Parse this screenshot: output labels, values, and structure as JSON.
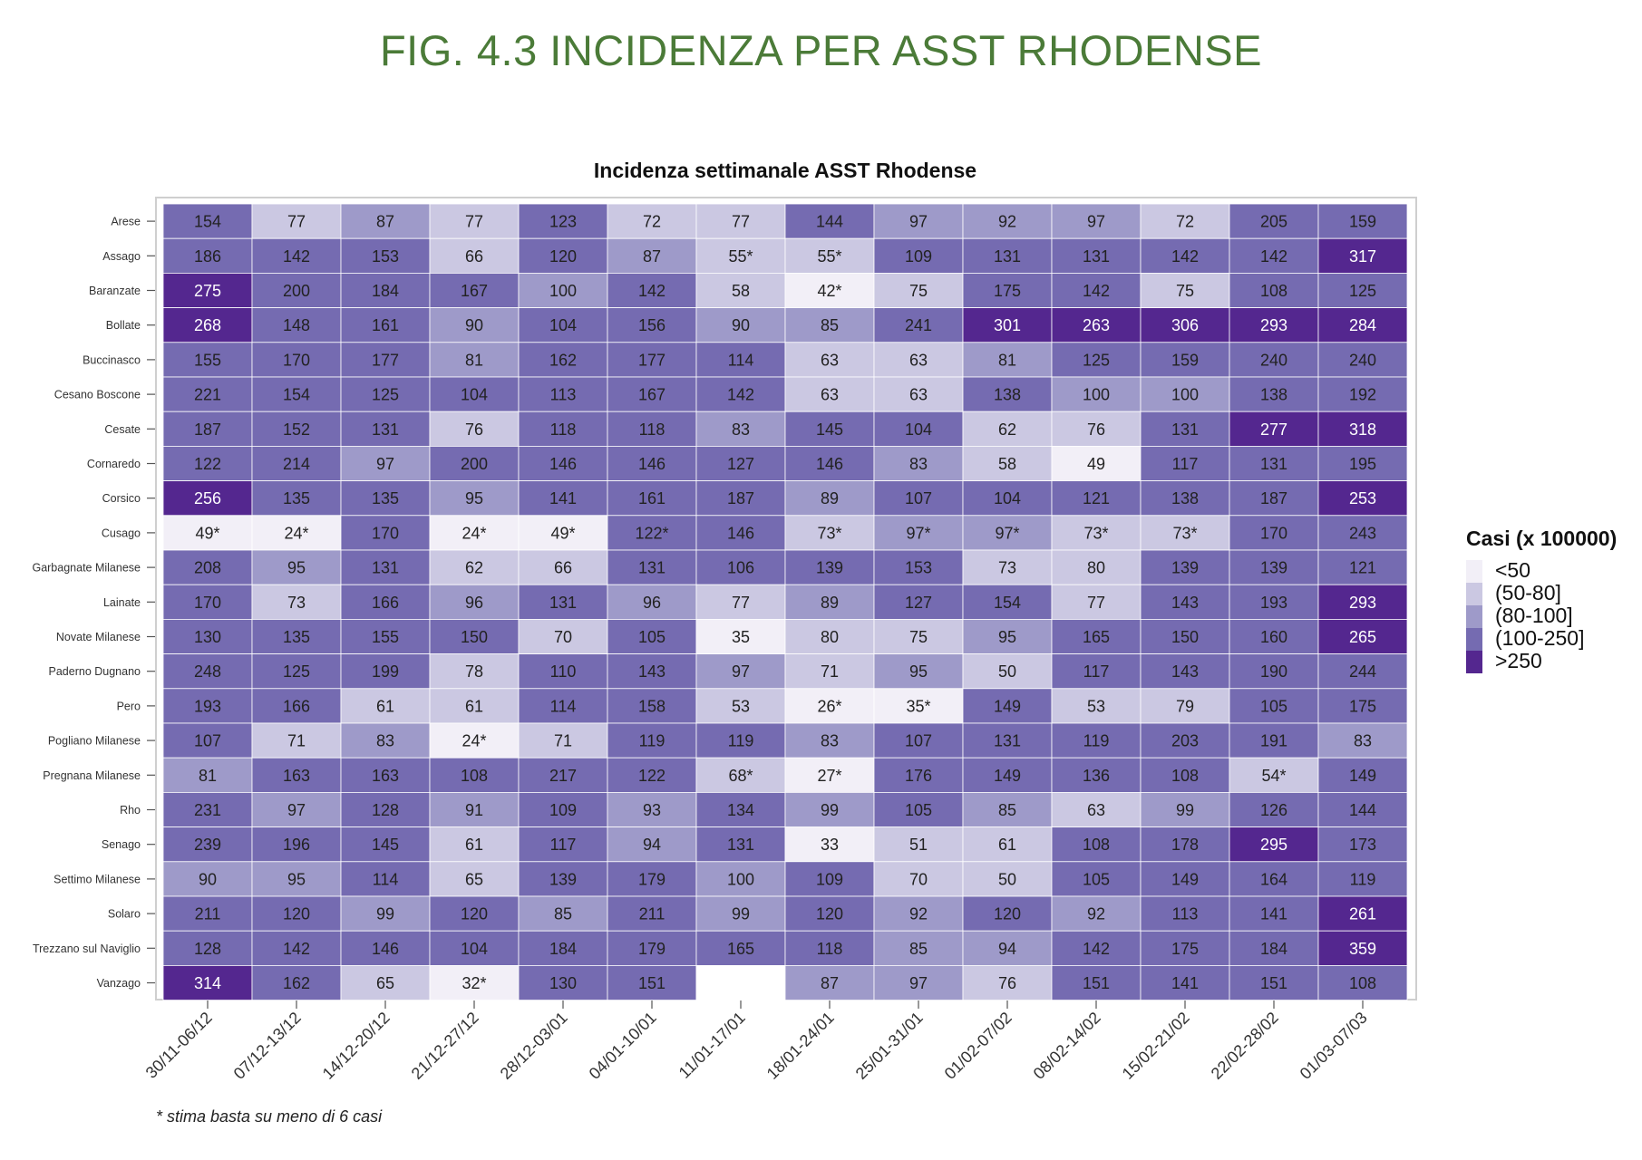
{
  "figure_title": "FIG. 4.3 INCIDENZA PER ASST RHODENSE",
  "footnote": "* stima basta su meno di 6 casi",
  "chart_data": {
    "type": "heatmap",
    "title": "Incidenza settimanale ASST Rhodense",
    "xlabel": "",
    "ylabel": "",
    "x": [
      "30/11-06/12",
      "07/12-13/12",
      "14/12-20/12",
      "21/12-27/12",
      "28/12-03/01",
      "04/01-10/01",
      "11/01-17/01",
      "18/01-24/01",
      "25/01-31/01",
      "01/02-07/02",
      "08/02-14/02",
      "15/02-21/02",
      "22/02-28/02",
      "01/03-07/03"
    ],
    "y": [
      "Arese",
      "Assago",
      "Baranzate",
      "Bollate",
      "Buccinasco",
      "Cesano Boscone",
      "Cesate",
      "Cornaredo",
      "Corsico",
      "Cusago",
      "Garbagnate Milanese",
      "Lainate",
      "Novate Milanese",
      "Paderno Dugnano",
      "Pero",
      "Pogliano Milanese",
      "Pregnana Milanese",
      "Rho",
      "Senago",
      "Settimo Milanese",
      "Solaro",
      "Trezzano sul Naviglio",
      "Vanzago"
    ],
    "values": [
      [
        154,
        77,
        87,
        77,
        123,
        72,
        77,
        144,
        97,
        92,
        97,
        72,
        205,
        159
      ],
      [
        186,
        142,
        153,
        66,
        120,
        87,
        55,
        55,
        109,
        131,
        131,
        142,
        142,
        317
      ],
      [
        275,
        200,
        184,
        167,
        100,
        142,
        58,
        42,
        75,
        175,
        142,
        75,
        108,
        125
      ],
      [
        268,
        148,
        161,
        90,
        104,
        156,
        90,
        85,
        241,
        301,
        263,
        306,
        293,
        284
      ],
      [
        155,
        170,
        177,
        81,
        162,
        177,
        114,
        63,
        63,
        81,
        125,
        159,
        240,
        240
      ],
      [
        221,
        154,
        125,
        104,
        113,
        167,
        142,
        63,
        63,
        138,
        100,
        100,
        138,
        192
      ],
      [
        187,
        152,
        131,
        76,
        118,
        118,
        83,
        145,
        104,
        62,
        76,
        131,
        277,
        318
      ],
      [
        122,
        214,
        97,
        200,
        146,
        146,
        127,
        146,
        83,
        58,
        49,
        117,
        131,
        195
      ],
      [
        256,
        135,
        135,
        95,
        141,
        161,
        187,
        89,
        107,
        104,
        121,
        138,
        187,
        253
      ],
      [
        49,
        24,
        170,
        24,
        49,
        122,
        146,
        73,
        97,
        97,
        73,
        73,
        170,
        243
      ],
      [
        208,
        95,
        131,
        62,
        66,
        131,
        106,
        139,
        153,
        73,
        80,
        139,
        139,
        121
      ],
      [
        170,
        73,
        166,
        96,
        131,
        96,
        77,
        89,
        127,
        154,
        77,
        143,
        193,
        293
      ],
      [
        130,
        135,
        155,
        150,
        70,
        105,
        35,
        80,
        75,
        95,
        165,
        150,
        160,
        265
      ],
      [
        248,
        125,
        199,
        78,
        110,
        143,
        97,
        71,
        95,
        50,
        117,
        143,
        190,
        244
      ],
      [
        193,
        166,
        61,
        61,
        114,
        158,
        53,
        26,
        35,
        149,
        53,
        79,
        105,
        175
      ],
      [
        107,
        71,
        83,
        24,
        71,
        119,
        119,
        83,
        107,
        131,
        119,
        203,
        191,
        83
      ],
      [
        81,
        163,
        163,
        108,
        217,
        122,
        68,
        27,
        176,
        149,
        136,
        108,
        54,
        149
      ],
      [
        231,
        97,
        128,
        91,
        109,
        93,
        134,
        99,
        105,
        85,
        63,
        99,
        126,
        144
      ],
      [
        239,
        196,
        145,
        61,
        117,
        94,
        131,
        33,
        51,
        61,
        108,
        178,
        295,
        173
      ],
      [
        90,
        95,
        114,
        65,
        139,
        179,
        100,
        109,
        70,
        50,
        105,
        149,
        164,
        119
      ],
      [
        211,
        120,
        99,
        120,
        85,
        211,
        99,
        120,
        92,
        120,
        92,
        113,
        141,
        261
      ],
      [
        128,
        142,
        146,
        104,
        184,
        179,
        165,
        118,
        85,
        94,
        142,
        175,
        184,
        359
      ],
      [
        314,
        162,
        65,
        32,
        130,
        151,
        null,
        87,
        97,
        76,
        151,
        141,
        151,
        108
      ]
    ],
    "labels": [
      [
        "154",
        "77",
        "87",
        "77",
        "123",
        "72",
        "77",
        "144",
        "97",
        "92",
        "97",
        "72",
        "205",
        "159"
      ],
      [
        "186",
        "142",
        "153",
        "66",
        "120",
        "87",
        "55*",
        "55*",
        "109",
        "131",
        "131",
        "142",
        "142",
        "317"
      ],
      [
        "275",
        "200",
        "184",
        "167",
        "100",
        "142",
        "58",
        "42*",
        "75",
        "175",
        "142",
        "75",
        "108",
        "125"
      ],
      [
        "268",
        "148",
        "161",
        "90",
        "104",
        "156",
        "90",
        "85",
        "241",
        "301",
        "263",
        "306",
        "293",
        "284"
      ],
      [
        "155",
        "170",
        "177",
        "81",
        "162",
        "177",
        "114",
        "63",
        "63",
        "81",
        "125",
        "159",
        "240",
        "240"
      ],
      [
        "221",
        "154",
        "125",
        "104",
        "113",
        "167",
        "142",
        "63",
        "63",
        "138",
        "100",
        "100",
        "138",
        "192"
      ],
      [
        "187",
        "152",
        "131",
        "76",
        "118",
        "118",
        "83",
        "145",
        "104",
        "62",
        "76",
        "131",
        "277",
        "318"
      ],
      [
        "122",
        "214",
        "97",
        "200",
        "146",
        "146",
        "127",
        "146",
        "83",
        "58",
        "49",
        "117",
        "131",
        "195"
      ],
      [
        "256",
        "135",
        "135",
        "95",
        "141",
        "161",
        "187",
        "89",
        "107",
        "104",
        "121",
        "138",
        "187",
        "253"
      ],
      [
        "49*",
        "24*",
        "170",
        "24*",
        "49*",
        "122*",
        "146",
        "73*",
        "97*",
        "97*",
        "73*",
        "73*",
        "170",
        "243"
      ],
      [
        "208",
        "95",
        "131",
        "62",
        "66",
        "131",
        "106",
        "139",
        "153",
        "73",
        "80",
        "139",
        "139",
        "121"
      ],
      [
        "170",
        "73",
        "166",
        "96",
        "131",
        "96",
        "77",
        "89",
        "127",
        "154",
        "77",
        "143",
        "193",
        "293"
      ],
      [
        "130",
        "135",
        "155",
        "150",
        "70",
        "105",
        "35",
        "80",
        "75",
        "95",
        "165",
        "150",
        "160",
        "265"
      ],
      [
        "248",
        "125",
        "199",
        "78",
        "110",
        "143",
        "97",
        "71",
        "95",
        "50",
        "117",
        "143",
        "190",
        "244"
      ],
      [
        "193",
        "166",
        "61",
        "61",
        "114",
        "158",
        "53",
        "26*",
        "35*",
        "149",
        "53",
        "79",
        "105",
        "175"
      ],
      [
        "107",
        "71",
        "83",
        "24*",
        "71",
        "119",
        "119",
        "83",
        "107",
        "131",
        "119",
        "203",
        "191",
        "83"
      ],
      [
        "81",
        "163",
        "163",
        "108",
        "217",
        "122",
        "68*",
        "27*",
        "176",
        "149",
        "136",
        "108",
        "54*",
        "149"
      ],
      [
        "231",
        "97",
        "128",
        "91",
        "109",
        "93",
        "134",
        "99",
        "105",
        "85",
        "63",
        "99",
        "126",
        "144"
      ],
      [
        "239",
        "196",
        "145",
        "61",
        "117",
        "94",
        "131",
        "33",
        "51",
        "61",
        "108",
        "178",
        "295",
        "173"
      ],
      [
        "90",
        "95",
        "114",
        "65",
        "139",
        "179",
        "100",
        "109",
        "70",
        "50",
        "105",
        "149",
        "164",
        "119"
      ],
      [
        "211",
        "120",
        "99",
        "120",
        "85",
        "211",
        "99",
        "120",
        "92",
        "120",
        "92",
        "113",
        "141",
        "261"
      ],
      [
        "128",
        "142",
        "146",
        "104",
        "184",
        "179",
        "165",
        "118",
        "85",
        "94",
        "142",
        "175",
        "184",
        "359"
      ],
      [
        "314",
        "162",
        "65",
        "32*",
        "130",
        "151",
        "",
        "87",
        "97",
        "76",
        "151",
        "141",
        "151",
        "108"
      ]
    ],
    "legend": {
      "title": "Casi (x 100000)",
      "placement": "right",
      "bins": [
        {
          "label": "<50",
          "color": "#f2eff7"
        },
        {
          "label": "(50-80]",
          "color": "#cbc8e2"
        },
        {
          "label": "(80-100]",
          "color": "#9e9ac9"
        },
        {
          "label": "(100-250]",
          "color": "#756bb1"
        },
        {
          "label": ">250",
          "color": "#54278f"
        }
      ]
    },
    "empty_color": "#ffffff",
    "grid": false
  }
}
